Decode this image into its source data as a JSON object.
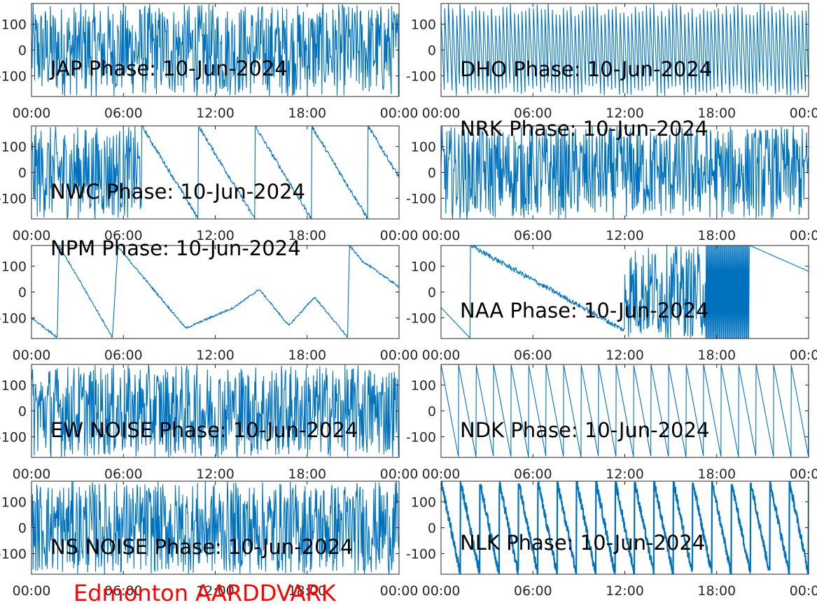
{
  "figure": {
    "footer": "Edmonton AARDDVARK",
    "footer_color": "#FF0000",
    "line_color": "#0072BD"
  },
  "chart_data": [
    {
      "type": "line",
      "title": "JAP Phase: 10-Jun-2024",
      "x_ticks": [
        "00:00",
        "06:00",
        "12:00",
        "18:00",
        "00:00"
      ],
      "y_ticks": [
        "100",
        "0",
        "-100"
      ],
      "xlim": [
        "00:00",
        "24:00"
      ],
      "ylim": [
        -180,
        180
      ],
      "pattern": "noise",
      "sample_values_approx": [
        120,
        -150,
        60,
        -90,
        170,
        -30,
        140,
        -170,
        20,
        90
      ]
    },
    {
      "type": "line",
      "title": "DHO Phase: 10-Jun-2024",
      "x_ticks": [
        "00:00",
        "06:00",
        "12:00",
        "18:00",
        "00:00"
      ],
      "y_ticks": [
        "100",
        "0",
        "-100"
      ],
      "xlim": [
        "00:00",
        "24:00"
      ],
      "ylim": [
        -180,
        180
      ],
      "pattern": "dense-sawtooth",
      "sample_values_approx": [
        180,
        -180,
        150,
        -150,
        100,
        -100,
        60,
        -60,
        20,
        -20
      ]
    },
    {
      "type": "line",
      "title": "NWC Phase: 10-Jun-2024",
      "x_ticks": [
        "00:00",
        "06:00",
        "12:00",
        "18:00",
        "00:00"
      ],
      "y_ticks": [
        "100",
        "0",
        "-100"
      ],
      "xlim": [
        "00:00",
        "24:00"
      ],
      "ylim": [
        -180,
        180
      ],
      "pattern": "noise-then-slow-wraps",
      "sample_values_approx": [
        100,
        -170,
        180,
        -100,
        180,
        -180,
        180,
        -150,
        -120,
        80
      ]
    },
    {
      "type": "line",
      "title": "NRK Phase: 10-Jun-2024",
      "x_ticks": [
        "00:00",
        "06:00",
        "12:00",
        "18:00",
        "00:00"
      ],
      "y_ticks": [
        "100",
        "0",
        "-100"
      ],
      "xlim": [
        "00:00",
        "24:00"
      ],
      "ylim": [
        -180,
        180
      ],
      "pattern": "noise",
      "sample_values_approx": [
        150,
        -160,
        80,
        -120,
        160,
        -40,
        120,
        140,
        -170,
        170
      ]
    },
    {
      "type": "line",
      "title": "NPM Phase: 10-Jun-2024",
      "x_ticks": [
        "00:00",
        "06:00",
        "12:00",
        "18:00",
        "00:00"
      ],
      "y_ticks": [
        "100",
        "0",
        "-100"
      ],
      "xlim": [
        "00:00",
        "24:00"
      ],
      "ylim": [
        -180,
        180
      ],
      "pattern": "slow-wraps",
      "sample_values_approx": [
        -100,
        -170,
        180,
        -170,
        180,
        -140,
        10,
        -170,
        180,
        30
      ]
    },
    {
      "type": "line",
      "title": "NAA Phase: 10-Jun-2024",
      "x_ticks": [
        "00:00",
        "06:00",
        "12:00",
        "18:00",
        "00:00"
      ],
      "y_ticks": [
        "100",
        "0",
        "-100"
      ],
      "xlim": [
        "00:00",
        "24:00"
      ],
      "ylim": [
        -180,
        180
      ],
      "pattern": "slow-then-noise",
      "sample_values_approx": [
        -60,
        -180,
        180,
        -50,
        -140,
        -40,
        -180,
        180,
        120,
        80
      ]
    },
    {
      "type": "line",
      "title": "EW NOISE Phase: 10-Jun-2024",
      "x_ticks": [
        "00:00",
        "06:00",
        "12:00",
        "18:00",
        "00:00"
      ],
      "y_ticks": [
        "100",
        "0",
        "-100"
      ],
      "xlim": [
        "00:00",
        "24:00"
      ],
      "ylim": [
        -180,
        180
      ],
      "pattern": "noise",
      "sample_values_approx": [
        130,
        -160,
        40,
        -100,
        170,
        -60,
        150,
        -170,
        10,
        60
      ]
    },
    {
      "type": "line",
      "title": "NDK Phase: 10-Jun-2024",
      "x_ticks": [
        "00:00",
        "06:00",
        "12:00",
        "18:00",
        "00:00"
      ],
      "y_ticks": [
        "100",
        "0",
        "-100"
      ],
      "xlim": [
        "00:00",
        "24:00"
      ],
      "ylim": [
        -180,
        180
      ],
      "pattern": "regular-sawtooth",
      "sample_values_approx": [
        180,
        -180,
        180,
        -180,
        180,
        -180,
        180,
        -180,
        180,
        -180
      ]
    },
    {
      "type": "line",
      "title": "NS NOISE Phase: 10-Jun-2024",
      "x_ticks": [
        "00:00",
        "06:00",
        "12:00",
        "18:00",
        "00:00"
      ],
      "y_ticks": [
        "100",
        "0",
        "-100"
      ],
      "xlim": [
        "00:00",
        "24:00"
      ],
      "ylim": [
        -180,
        180
      ],
      "pattern": "noise",
      "sample_values_approx": [
        110,
        -140,
        70,
        -160,
        150,
        -20,
        130,
        -170,
        30,
        80
      ]
    },
    {
      "type": "line",
      "title": "NLK Phase: 10-Jun-2024",
      "x_ticks": [
        "00:00",
        "06:00",
        "12:00",
        "18:00",
        "00:00"
      ],
      "y_ticks": [
        "100",
        "0",
        "-100"
      ],
      "xlim": [
        "00:00",
        "24:00"
      ],
      "ylim": [
        -180,
        180
      ],
      "pattern": "thick-sawtooth",
      "sample_values_approx": [
        180,
        -180,
        180,
        -180,
        180,
        -180,
        180,
        -180,
        180,
        -180
      ]
    }
  ]
}
